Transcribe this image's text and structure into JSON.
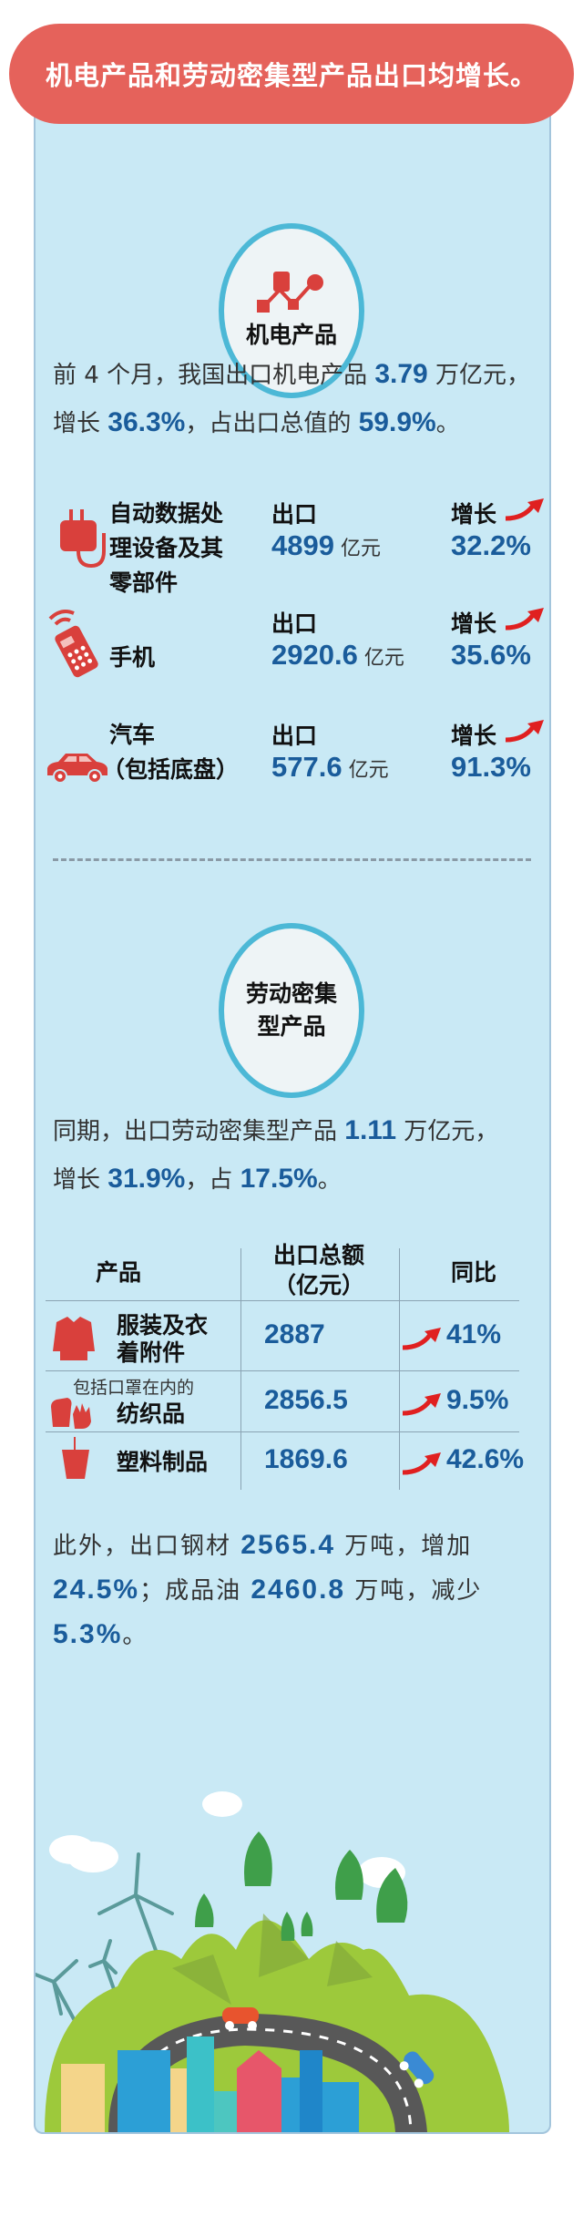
{
  "banner": {
    "title": "机电产品和劳动密集型产品出口均增长。"
  },
  "colors": {
    "banner": "#e5625b",
    "panel": "#c9e9f5",
    "number": "#1a5c9b",
    "circle_border": "#4cb8d6",
    "icon_red": "#d9403c"
  },
  "section1": {
    "badge_icon": "network-nodes-icon",
    "badge": "机电产品",
    "para": {
      "t1": "前 4 个月，我国出口机电产品 ",
      "n1": "3.79",
      "t2": " 万亿元，",
      "t3": "增长 ",
      "n2": "36.3%",
      "t4": "，占出口总值的 ",
      "n3": "59.9%",
      "t5": "。"
    },
    "items": [
      {
        "icon": "data-device-icon",
        "name": "自动数据处理设备及其零部件",
        "export_label": "出口",
        "value": "4899",
        "unit": "亿元",
        "growth_label": "增长",
        "growth": "32.2%"
      },
      {
        "icon": "mobile-phone-icon",
        "name": "手机",
        "export_label": "出口",
        "value": "2920.6",
        "unit": "亿元",
        "growth_label": "增长",
        "growth": "35.6%"
      },
      {
        "icon": "car-icon",
        "name": "汽车",
        "name2": "（包括底盘）",
        "export_label": "出口",
        "value": "577.6",
        "unit": "亿元",
        "growth_label": "增长",
        "growth": "91.3%"
      }
    ]
  },
  "section2": {
    "badge_l1": "劳动密集",
    "badge_l2": "型产品",
    "para": {
      "t1": "同期，出口劳动密集型产品 ",
      "n1": "1.11",
      "t2": " 万亿元，",
      "t3": "增长 ",
      "n2": "31.9%",
      "t4": "，占 ",
      "n3": "17.5%",
      "t5": "。"
    },
    "table": {
      "headers": [
        "产品",
        "出口总额",
        "（亿元）",
        "同比"
      ],
      "rows": [
        {
          "icon": "clothing-icon",
          "name1": "服装及衣",
          "name2": "着附件",
          "value": "2887",
          "yoy": "41%"
        },
        {
          "icon": "gloves-icon",
          "note": "包括口罩在内的",
          "name1": "纺织品",
          "value": "2856.5",
          "yoy": "9.5%"
        },
        {
          "icon": "plastic-cup-icon",
          "name1": "塑料制品",
          "value": "1869.6",
          "yoy": "42.6%"
        }
      ]
    }
  },
  "section3": {
    "para": {
      "t1": "此外，出口钢材 ",
      "n1": "2565.4",
      "t2": " 万吨，增加 ",
      "n2": "24.5%",
      "t3": "；成品油 ",
      "n3": "2460.8",
      "t4": " 万吨，减少 ",
      "n4": "5.3%",
      "t5": "。"
    }
  },
  "illustration": {
    "icon": "green-city-landscape-illustration"
  }
}
